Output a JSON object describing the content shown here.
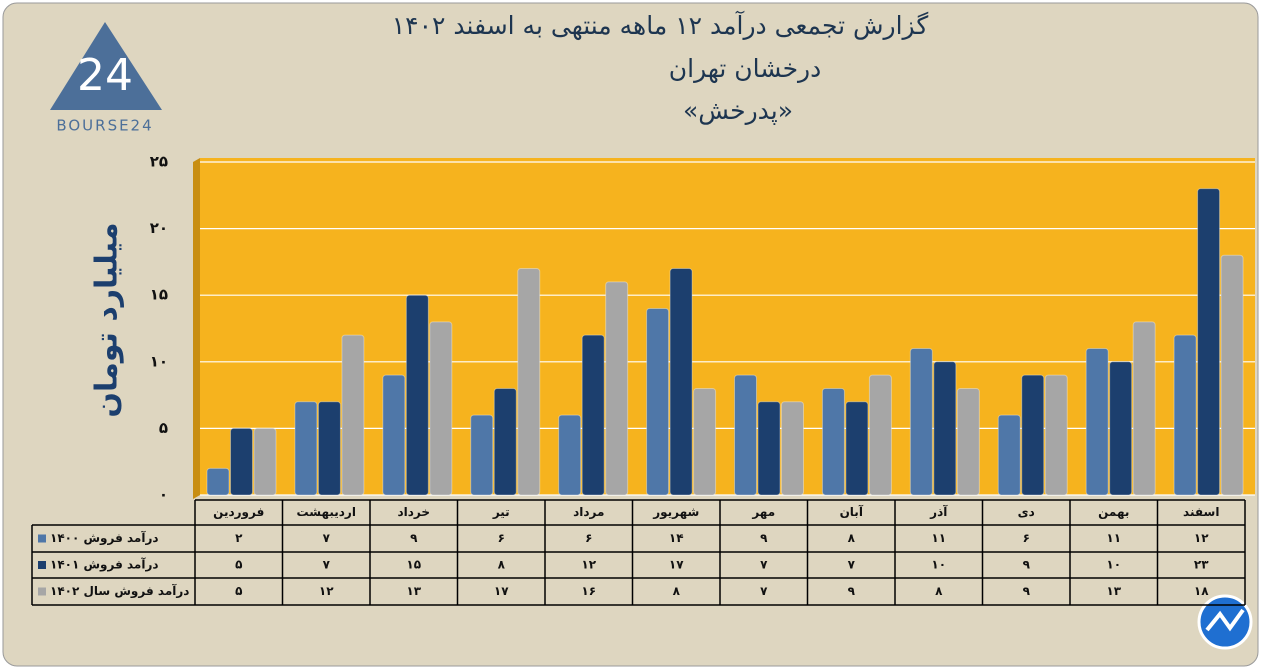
{
  "logo": {
    "mark": "24",
    "text": "BOURSE24"
  },
  "chart_data": {
    "type": "bar",
    "title": "گزارش تجمعی درآمد ۱۲ ماهه منتهی به اسفند ۱۴۰۲",
    "subtitle": "درخشان تهران",
    "subtitle2": "«پدرخش»",
    "y_label": "میلیارد تومان",
    "categories": [
      "فروردین",
      "اردیبهشت",
      "خرداد",
      "تیر",
      "مرداد",
      "شهریور",
      "مهر",
      "آبان",
      "آذر",
      "دی",
      "بهمن",
      "اسفند"
    ],
    "series": [
      {
        "name": "درآمد فروش ۱۴۰۰",
        "color": "#4f77a8",
        "values": [
          2,
          7,
          9,
          6,
          6,
          14,
          9,
          8,
          11,
          6,
          11,
          12
        ],
        "value_labels": [
          "۲",
          "۷",
          "۹",
          "۶",
          "۶",
          "۱۴",
          "۹",
          "۸",
          "۱۱",
          "۶",
          "۱۱",
          "۱۲"
        ]
      },
      {
        "name": "درآمد فروش ۱۴۰۱",
        "color": "#1c3f6e",
        "values": [
          5,
          7,
          15,
          8,
          12,
          17,
          7,
          7,
          10,
          9,
          10,
          23
        ],
        "value_labels": [
          "۵",
          "۷",
          "۱۵",
          "۸",
          "۱۲",
          "۱۷",
          "۷",
          "۷",
          "۱۰",
          "۹",
          "۱۰",
          "۲۳"
        ]
      },
      {
        "name": "درآمد فروش سال ۱۴۰۲",
        "color": "#a6a6a6",
        "values": [
          5,
          12,
          13,
          17,
          16,
          8,
          7,
          9,
          8,
          9,
          13,
          18
        ],
        "value_labels": [
          "۵",
          "۱۲",
          "۱۳",
          "۱۷",
          "۱۶",
          "۸",
          "۷",
          "۹",
          "۸",
          "۹",
          "۱۳",
          "۱۸"
        ]
      }
    ],
    "ylim": [
      0,
      25
    ],
    "yticks": [
      {
        "value": 0,
        "label": "۰"
      },
      {
        "value": 5,
        "label": "۵"
      },
      {
        "value": 10,
        "label": "۱۰"
      },
      {
        "value": 15,
        "label": "۱۵"
      },
      {
        "value": 20,
        "label": "۲۰"
      },
      {
        "value": 25,
        "label": "۲۵"
      }
    ],
    "grid": true,
    "plot_color": "#f6b31e"
  }
}
